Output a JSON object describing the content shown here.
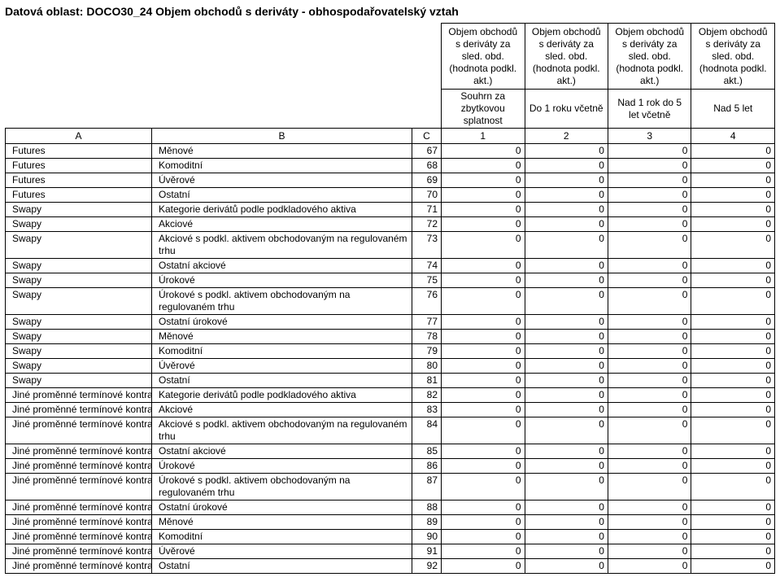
{
  "title": "Datová oblast: DOCO30_24 Objem obchodů s deriváty - obhospodařovatelský vztah",
  "header": {
    "metric_label": "Objem obchodů s deriváty za sled. obd. (hodnota podkl. akt.)",
    "period1": "Souhrn za zbytkovou splatnost",
    "period2": "Do 1 roku včetně",
    "period3": "Nad 1 rok do 5 let včetně",
    "period4": "Nad 5 let",
    "col_a": "A",
    "col_b": "B",
    "col_c": "C",
    "col_1": "1",
    "col_2": "2",
    "col_3": "3",
    "col_4": "4"
  },
  "rows": [
    {
      "a": "Futures",
      "b": "Měnové",
      "c": 67,
      "v": [
        0,
        0,
        0,
        0
      ]
    },
    {
      "a": "Futures",
      "b": "Komoditní",
      "c": 68,
      "v": [
        0,
        0,
        0,
        0
      ]
    },
    {
      "a": "Futures",
      "b": "Úvěrové",
      "c": 69,
      "v": [
        0,
        0,
        0,
        0
      ]
    },
    {
      "a": "Futures",
      "b": "Ostatní",
      "c": 70,
      "v": [
        0,
        0,
        0,
        0
      ]
    },
    {
      "a": "Swapy",
      "b": "Kategorie derivátů podle podkladového aktiva",
      "c": 71,
      "v": [
        0,
        0,
        0,
        0
      ]
    },
    {
      "a": "Swapy",
      "b": "Akciové",
      "c": 72,
      "v": [
        0,
        0,
        0,
        0
      ]
    },
    {
      "a": "Swapy",
      "b": "Akciové s podkl. aktivem obchodovaným na regulovaném trhu",
      "c": 73,
      "v": [
        0,
        0,
        0,
        0
      ]
    },
    {
      "a": "Swapy",
      "b": "Ostatní akciové",
      "c": 74,
      "v": [
        0,
        0,
        0,
        0
      ]
    },
    {
      "a": "Swapy",
      "b": "Úrokové",
      "c": 75,
      "v": [
        0,
        0,
        0,
        0
      ]
    },
    {
      "a": "Swapy",
      "b": "Úrokové s podkl. aktivem obchodovaným na regulovaném trhu",
      "c": 76,
      "v": [
        0,
        0,
        0,
        0
      ]
    },
    {
      "a": "Swapy",
      "b": "Ostatní úrokové",
      "c": 77,
      "v": [
        0,
        0,
        0,
        0
      ]
    },
    {
      "a": "Swapy",
      "b": "Měnové",
      "c": 78,
      "v": [
        0,
        0,
        0,
        0
      ]
    },
    {
      "a": "Swapy",
      "b": "Komoditní",
      "c": 79,
      "v": [
        0,
        0,
        0,
        0
      ]
    },
    {
      "a": "Swapy",
      "b": "Úvěrové",
      "c": 80,
      "v": [
        0,
        0,
        0,
        0
      ]
    },
    {
      "a": "Swapy",
      "b": "Ostatní",
      "c": 81,
      "v": [
        0,
        0,
        0,
        0
      ]
    },
    {
      "a": "Jiné proměnné termínové kontrakty",
      "b": "Kategorie derivátů podle podkladového aktiva",
      "c": 82,
      "v": [
        0,
        0,
        0,
        0
      ]
    },
    {
      "a": "Jiné proměnné termínové kontrakty",
      "b": "Akciové",
      "c": 83,
      "v": [
        0,
        0,
        0,
        0
      ]
    },
    {
      "a": "Jiné proměnné termínové kontrakty",
      "b": "Akciové s podkl. aktivem obchodovaným na regulovaném trhu",
      "c": 84,
      "v": [
        0,
        0,
        0,
        0
      ]
    },
    {
      "a": "Jiné proměnné termínové kontrakty",
      "b": "Ostatní akciové",
      "c": 85,
      "v": [
        0,
        0,
        0,
        0
      ]
    },
    {
      "a": "Jiné proměnné termínové kontrakty",
      "b": "Úrokové",
      "c": 86,
      "v": [
        0,
        0,
        0,
        0
      ]
    },
    {
      "a": "Jiné proměnné termínové kontrakty",
      "b": "Úrokové s podkl. aktivem obchodovaným na regulovaném trhu",
      "c": 87,
      "v": [
        0,
        0,
        0,
        0
      ]
    },
    {
      "a": "Jiné proměnné termínové kontrakty",
      "b": "Ostatní úrokové",
      "c": 88,
      "v": [
        0,
        0,
        0,
        0
      ]
    },
    {
      "a": "Jiné proměnné termínové kontrakty",
      "b": "Měnové",
      "c": 89,
      "v": [
        0,
        0,
        0,
        0
      ]
    },
    {
      "a": "Jiné proměnné termínové kontrakty",
      "b": "Komoditní",
      "c": 90,
      "v": [
        0,
        0,
        0,
        0
      ]
    },
    {
      "a": "Jiné proměnné termínové kontrakty",
      "b": "Úvěrové",
      "c": 91,
      "v": [
        0,
        0,
        0,
        0
      ]
    },
    {
      "a": "Jiné proměnné termínové kontrakty",
      "b": "Ostatní",
      "c": 92,
      "v": [
        0,
        0,
        0,
        0
      ]
    }
  ]
}
